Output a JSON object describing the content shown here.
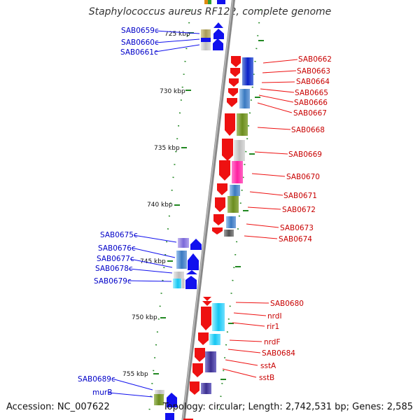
{
  "title": "Staphylococcus aureus RF122, complete genome",
  "accession": "Accession: NC_007622",
  "summary": "Topology: circular; Length: 2,742,531 bp; Genes: 2,585",
  "colors": {
    "forward_arrow": "#ee1111",
    "reverse_arrow": "#1111ee",
    "left_label": "#0000c8",
    "right_label": "#c80000",
    "tick": "#228822",
    "backbone": "#888888"
  },
  "kbp_ticks": [
    "725 kbp",
    "730 kbp",
    "735 kbp",
    "740 kbp",
    "745 kbp",
    "750 kbp",
    "755 kbp"
  ],
  "left_genes": [
    "SAB0659c",
    "SAB0660c",
    "SAB0661c",
    "SAB0675c",
    "SAB0676c",
    "SAB0677c",
    "SAB0678c",
    "SAB0679c",
    "SAB0689c",
    "murB"
  ],
  "right_genes": [
    "SAB0662",
    "SAB0663",
    "SAB0664",
    "SAB0665",
    "SAB0666",
    "SAB0667",
    "SAB0668",
    "SAB0669",
    "SAB0670",
    "SAB0671",
    "SAB0672",
    "SAB0673",
    "SAB0674",
    "SAB0680",
    "nrdI",
    "rir1",
    "nrdF",
    "SAB0684",
    "sstA",
    "sstB"
  ]
}
